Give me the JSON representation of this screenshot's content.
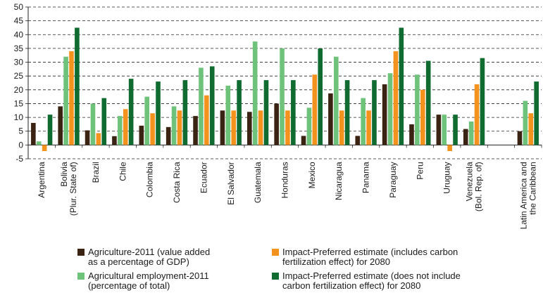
{
  "chart_data": {
    "type": "bar",
    "title": "",
    "xlabel": "",
    "ylabel": "",
    "ylim": [
      -5,
      50
    ],
    "yticks": [
      -5,
      0,
      5,
      10,
      15,
      20,
      25,
      30,
      35,
      40,
      45,
      50
    ],
    "grid": "horizontal dashed",
    "legend_position": "bottom",
    "categories": [
      [
        "Argentina"
      ],
      [
        "Bolivia",
        "(Plur. State of)"
      ],
      [
        "Brazil"
      ],
      [
        "Chile"
      ],
      [
        "Colombia"
      ],
      [
        "Costa Rica"
      ],
      [
        "Ecuador"
      ],
      [
        "El Salvador"
      ],
      [
        "Guatemala"
      ],
      [
        "Honduras"
      ],
      [
        "Mexico"
      ],
      [
        "Nicaragua"
      ],
      [
        "Panama"
      ],
      [
        "Paraguay"
      ],
      [
        "Peru"
      ],
      [
        "Uruguay"
      ],
      [
        "Venezuela",
        "(Bol. Rep. of)"
      ],
      [],
      [
        "Latin America and",
        "the Caribbean"
      ]
    ],
    "series": [
      {
        "name": [
          "Agriculture-2011 (value added",
          "as a percentage of GDP)"
        ],
        "color": "#3b2314",
        "values": [
          8,
          14,
          5.3,
          3.2,
          7,
          6.5,
          10.5,
          12.5,
          12,
          15,
          3.3,
          18.7,
          3.3,
          22,
          7.5,
          11,
          5.8,
          null,
          5
        ]
      },
      {
        "name": [
          "Agricultural employment-2011",
          "(percentage of total)"
        ],
        "color": "#6ec27a",
        "values": [
          1.3,
          32,
          15,
          10.5,
          17.5,
          14,
          28,
          21.5,
          37.5,
          35,
          13.5,
          32,
          17,
          26,
          25.5,
          11,
          8.5,
          null,
          16
        ]
      },
      {
        "name": [
          "Impact-Preferred estimate (includes carbon",
          "fertilization effect) for 2080"
        ],
        "color": "#f3931e",
        "values": [
          -2.2,
          34,
          4.3,
          13,
          11.5,
          12.5,
          18,
          12.5,
          12.5,
          12.5,
          25.5,
          12.5,
          12.5,
          34,
          20,
          -2.2,
          22,
          null,
          11.5
        ]
      },
      {
        "name": [
          "Impact-Preferred estimate (does not include",
          "carbon fertilization effect) for 2080"
        ],
        "color": "#0f6b2f",
        "values": [
          11,
          42.5,
          17,
          24,
          23,
          23.5,
          28.5,
          23.5,
          23.5,
          23.5,
          35,
          23.5,
          23.5,
          42.5,
          30.5,
          11,
          31.5,
          null,
          23
        ]
      }
    ]
  }
}
